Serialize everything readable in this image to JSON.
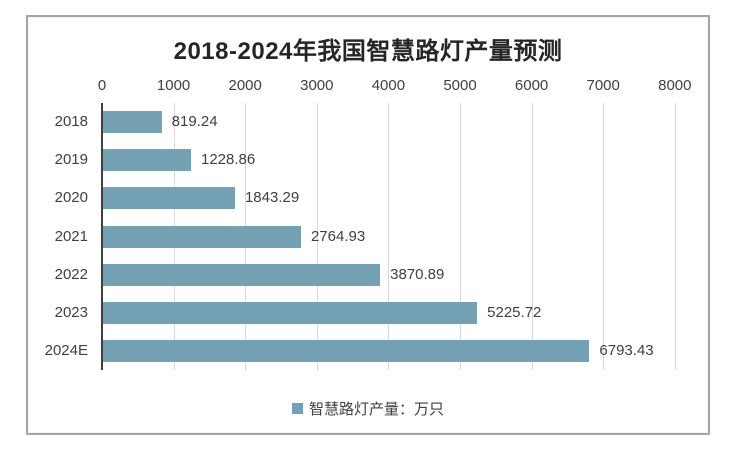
{
  "chart_data": {
    "type": "bar",
    "orientation": "horizontal",
    "title": "2018-2024年我国智慧路灯产量预测",
    "categories": [
      "2018",
      "2019",
      "2020",
      "2021",
      "2022",
      "2023",
      "2024E"
    ],
    "values": [
      819.24,
      1228.86,
      1843.29,
      2764.93,
      3870.89,
      5225.72,
      6793.43
    ],
    "data_labels": [
      "819.24",
      "1228.86",
      "1843.29",
      "2764.93",
      "3870.89",
      "5225.72",
      "6793.43"
    ],
    "xlabel": "",
    "ylabel": "",
    "x_axis": {
      "position": "top",
      "min": 0,
      "max": 8000,
      "tick_interval": 1000,
      "ticks": [
        0,
        1000,
        2000,
        3000,
        4000,
        5000,
        6000,
        7000,
        8000
      ]
    },
    "grid": true,
    "legend": {
      "position": "bottom",
      "label": "智慧路灯产量：万只"
    },
    "colors": {
      "bar": "#74a2b4",
      "legend_marker": "#6fa2b8",
      "gridline": "#d9d9d9",
      "axis_line": "#404040",
      "text": "#404040",
      "title": "#262626",
      "frame_border": "#a6a6a6",
      "background": "#ffffff"
    }
  }
}
